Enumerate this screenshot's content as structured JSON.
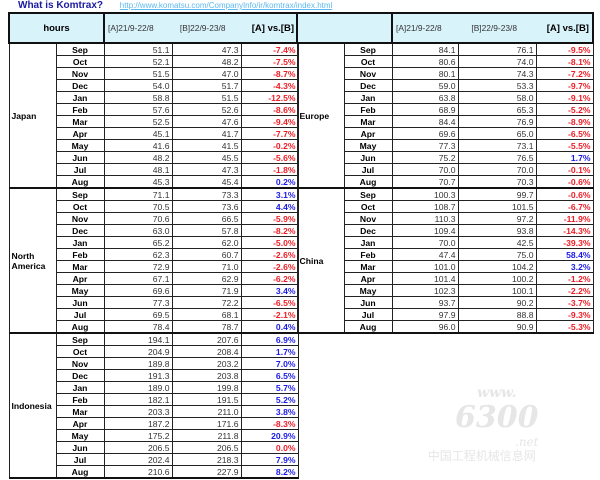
{
  "top": {
    "question": "What is Komtrax?",
    "link": "http://www.komatsu.com/CompanyInfo/ir/komtrax/index.html"
  },
  "header": {
    "hours": "hours",
    "col_a": "[A]21/9-22/8",
    "col_b": "[B]22/9-23/8",
    "col_c": "[A] vs.[B]"
  },
  "colors": {
    "negative": "#ee1c25",
    "positive": "#1a1ae6",
    "header_bg": "#d9f3fb"
  },
  "left_regions": [
    {
      "name": "Japan",
      "rows": [
        [
          "Sep",
          "51.1",
          "47.3",
          "-7.4%"
        ],
        [
          "Oct",
          "52.1",
          "48.2",
          "-7.5%"
        ],
        [
          "Nov",
          "51.5",
          "47.0",
          "-8.7%"
        ],
        [
          "Dec",
          "54.0",
          "51.7",
          "-4.3%"
        ],
        [
          "Jan",
          "58.8",
          "51.5",
          "-12.5%"
        ],
        [
          "Feb",
          "57.6",
          "52.6",
          "-8.6%"
        ],
        [
          "Mar",
          "52.5",
          "47.6",
          "-9.4%"
        ],
        [
          "Apr",
          "45.1",
          "41.7",
          "-7.7%"
        ],
        [
          "May",
          "41.6",
          "41.5",
          "-0.2%"
        ],
        [
          "Jun",
          "48.2",
          "45.5",
          "-5.6%"
        ],
        [
          "Jul",
          "48.1",
          "47.3",
          "-1.8%"
        ],
        [
          "Aug",
          "45.3",
          "45.4",
          "0.2%"
        ]
      ]
    },
    {
      "name": "North America",
      "rows": [
        [
          "Sep",
          "71.1",
          "73.3",
          "3.1%"
        ],
        [
          "Oct",
          "70.5",
          "73.6",
          "4.4%"
        ],
        [
          "Nov",
          "70.6",
          "66.5",
          "-5.9%"
        ],
        [
          "Dec",
          "63.0",
          "57.8",
          "-8.2%"
        ],
        [
          "Jan",
          "65.2",
          "62.0",
          "-5.0%"
        ],
        [
          "Feb",
          "62.3",
          "60.7",
          "-2.6%"
        ],
        [
          "Mar",
          "72.9",
          "71.0",
          "-2.6%"
        ],
        [
          "Apr",
          "67.1",
          "62.9",
          "-6.2%"
        ],
        [
          "May",
          "69.6",
          "71.9",
          "3.4%"
        ],
        [
          "Jun",
          "77.3",
          "72.2",
          "-6.5%"
        ],
        [
          "Jul",
          "69.5",
          "68.1",
          "-2.1%"
        ],
        [
          "Aug",
          "78.4",
          "78.7",
          "0.4%"
        ]
      ]
    },
    {
      "name": "Indonesia",
      "rows": [
        [
          "Sep",
          "194.1",
          "207.6",
          "6.9%"
        ],
        [
          "Oct",
          "204.9",
          "208.4",
          "1.7%"
        ],
        [
          "Nov",
          "189.8",
          "203.2",
          "7.0%"
        ],
        [
          "Dec",
          "191.3",
          "203.8",
          "6.5%"
        ],
        [
          "Jan",
          "189.0",
          "199.8",
          "5.7%"
        ],
        [
          "Feb",
          "182.1",
          "191.5",
          "5.2%"
        ],
        [
          "Mar",
          "203.3",
          "211.0",
          "3.8%"
        ],
        [
          "Apr",
          "187.2",
          "171.6",
          "-8.3%"
        ],
        [
          "May",
          "175.2",
          "211.8",
          "20.9%"
        ],
        [
          "Jun",
          "206.5",
          "206.5",
          "0.0%"
        ],
        [
          "Jul",
          "202.4",
          "218.3",
          "7.9%"
        ],
        [
          "Aug",
          "210.6",
          "227.9",
          "8.2%"
        ]
      ]
    }
  ],
  "right_regions": [
    {
      "name": "Europe",
      "rows": [
        [
          "Sep",
          "84.1",
          "76.1",
          "-9.5%"
        ],
        [
          "Oct",
          "80.6",
          "74.0",
          "-8.1%"
        ],
        [
          "Nov",
          "80.1",
          "74.3",
          "-7.2%"
        ],
        [
          "Dec",
          "59.0",
          "53.3",
          "-9.7%"
        ],
        [
          "Jan",
          "63.8",
          "58.0",
          "-9.1%"
        ],
        [
          "Feb",
          "68.9",
          "65.3",
          "-5.2%"
        ],
        [
          "Mar",
          "84.4",
          "76.9",
          "-8.9%"
        ],
        [
          "Apr",
          "69.6",
          "65.0",
          "-6.5%"
        ],
        [
          "May",
          "77.3",
          "73.1",
          "-5.5%"
        ],
        [
          "Jun",
          "75.2",
          "76.5",
          "1.7%"
        ],
        [
          "Jul",
          "70.0",
          "70.0",
          "-0.1%"
        ],
        [
          "Aug",
          "70.7",
          "70.3",
          "-0.6%"
        ]
      ]
    },
    {
      "name": "China",
      "rows": [
        [
          "Sep",
          "100.3",
          "99.7",
          "-0.6%"
        ],
        [
          "Oct",
          "108.7",
          "101.5",
          "-6.7%"
        ],
        [
          "Nov",
          "110.3",
          "97.2",
          "-11.9%"
        ],
        [
          "Dec",
          "109.4",
          "93.8",
          "-14.3%"
        ],
        [
          "Jan",
          "70.0",
          "42.5",
          "-39.3%"
        ],
        [
          "Feb",
          "47.4",
          "75.0",
          "58.4%"
        ],
        [
          "Mar",
          "101.0",
          "104.2",
          "3.2%"
        ],
        [
          "Apr",
          "101.4",
          "100.2",
          "-1.2%"
        ],
        [
          "May",
          "102.3",
          "100.1",
          "-2.2%"
        ],
        [
          "Jun",
          "93.7",
          "90.2",
          "-3.7%"
        ],
        [
          "Jul",
          "97.9",
          "88.8",
          "-9.3%"
        ],
        [
          "Aug",
          "96.0",
          "90.9",
          "-5.3%"
        ]
      ]
    }
  ],
  "watermark": {
    "www": "www.",
    "num": "6300",
    "net": ".net",
    "cn": "中国工程机械信息网"
  }
}
